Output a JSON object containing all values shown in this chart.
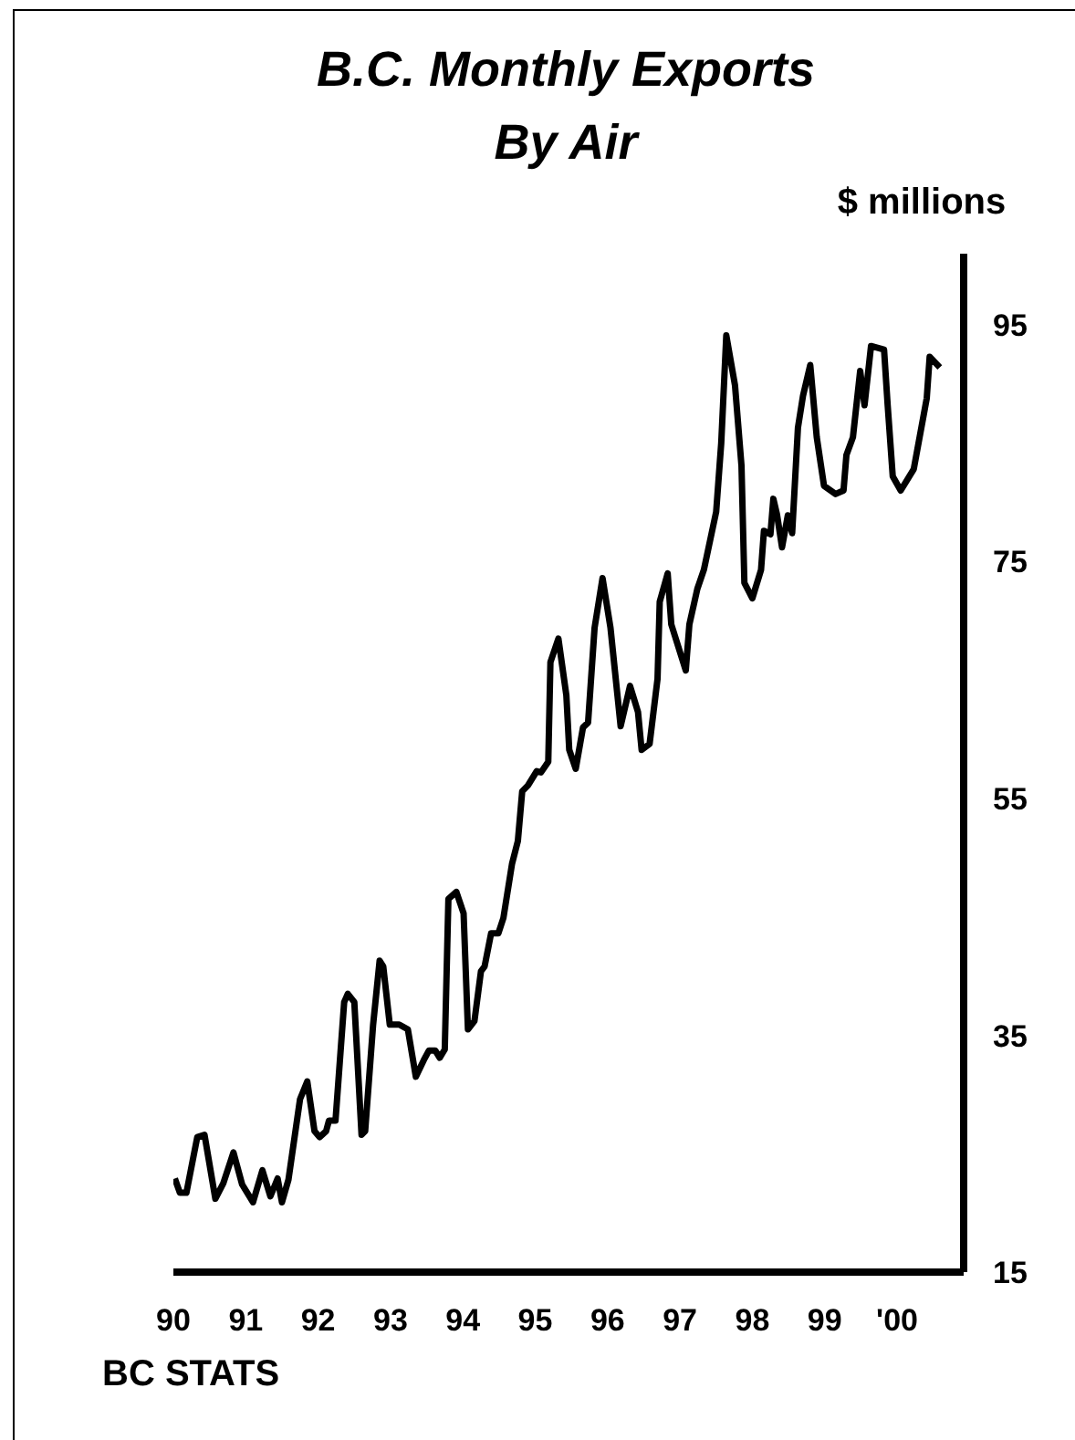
{
  "chart_data": {
    "type": "line",
    "title": "B.C. Monthly Exports\nBy Air",
    "ylabel": "$ millions",
    "annotations": [
      "BC STATS"
    ],
    "x": [
      1990.02,
      1990.09,
      1990.18,
      1990.33,
      1990.43,
      1990.58,
      1990.69,
      1990.83,
      1990.95,
      1991.1,
      1991.23,
      1991.34,
      1991.44,
      1991.5,
      1991.59,
      1991.75,
      1991.85,
      1991.95,
      1992.02,
      1992.11,
      1992.15,
      1992.24,
      1992.36,
      1992.41,
      1992.5,
      1992.6,
      1992.65,
      1992.76,
      1992.85,
      1992.9,
      1992.99,
      1993.12,
      1993.24,
      1993.35,
      1993.46,
      1993.53,
      1993.62,
      1993.68,
      1993.75,
      1993.8,
      1993.91,
      1994.01,
      1994.07,
      1994.16,
      1994.25,
      1994.3,
      1994.39,
      1994.49,
      1994.56,
      1994.68,
      1994.76,
      1994.82,
      1994.9,
      1995.02,
      1995.08,
      1995.18,
      1995.21,
      1995.32,
      1995.43,
      1995.47,
      1995.56,
      1995.66,
      1995.73,
      1995.82,
      1995.93,
      1996.04,
      1996.18,
      1996.31,
      1996.42,
      1996.47,
      1996.58,
      1996.69,
      1996.72,
      1996.83,
      1996.88,
      1997.08,
      1997.13,
      1997.24,
      1997.33,
      1997.5,
      1997.57,
      1997.64,
      1997.76,
      1997.85,
      1997.89,
      1998.0,
      1998.12,
      1998.16,
      1998.25,
      1998.29,
      1998.34,
      1998.41,
      1998.49,
      1998.55,
      1998.63,
      1998.7,
      1998.8,
      1998.89,
      1998.99,
      1999.15,
      1999.26,
      1999.3,
      1999.39,
      1999.49,
      1999.55,
      1999.64,
      1999.82,
      1999.87,
      1999.94,
      2000.05,
      2000.23,
      2000.41,
      2000.45,
      2000.59
    ],
    "series": [
      {
        "color": "#000000",
        "values": [
          22.9,
          21.7,
          21.7,
          26.4,
          26.6,
          21.2,
          22.5,
          25.1,
          22.4,
          20.9,
          23.6,
          21.4,
          22.9,
          20.9,
          22.8,
          29.6,
          31.1,
          26.9,
          26.4,
          26.9,
          27.8,
          27.8,
          37.8,
          38.5,
          37.8,
          26.6,
          26.9,
          35.9,
          41.3,
          40.8,
          35.9,
          35.9,
          35.5,
          31.5,
          32.9,
          33.7,
          33.7,
          33.1,
          33.8,
          46.5,
          47.1,
          45.3,
          35.5,
          36.2,
          40.4,
          40.8,
          43.6,
          43.6,
          44.9,
          49.5,
          51.4,
          55.6,
          56.1,
          57.3,
          57.2,
          58.1,
          66.5,
          68.5,
          63.7,
          59.1,
          57.5,
          61.0,
          61.4,
          69.4,
          73.6,
          69.4,
          61.1,
          64.5,
          62.3,
          59.1,
          59.6,
          65.1,
          71.6,
          74.0,
          69.7,
          65.8,
          69.7,
          72.7,
          74.3,
          79.2,
          85.0,
          94.1,
          89.9,
          83.1,
          73.2,
          71.9,
          74.3,
          77.6,
          77.3,
          80.3,
          79.0,
          76.2,
          78.9,
          77.4,
          86.3,
          89.0,
          91.6,
          85.5,
          81.4,
          80.7,
          81.0,
          84.0,
          85.5,
          91.1,
          88.2,
          93.2,
          92.9,
          88.2,
          82.2,
          81.0,
          82.8,
          88.8,
          92.3,
          91.4
        ]
      }
    ],
    "xlim": [
      1990,
      2000.92
    ],
    "xticks": [
      {
        "value": 1990,
        "label": "90"
      },
      {
        "value": 1991,
        "label": "91"
      },
      {
        "value": 1992,
        "label": "92"
      },
      {
        "value": 1993,
        "label": "93"
      },
      {
        "value": 1994,
        "label": "94"
      },
      {
        "value": 1995,
        "label": "95"
      },
      {
        "value": 1996,
        "label": "96"
      },
      {
        "value": 1997,
        "label": "97"
      },
      {
        "value": 1998,
        "label": "98"
      },
      {
        "value": 1999,
        "label": "99"
      },
      {
        "value": 2000,
        "label": "'00"
      }
    ],
    "ylim": [
      15,
      101
    ],
    "yticks": [
      15,
      35,
      55,
      75,
      95
    ],
    "grid": false,
    "legend": false,
    "marker": "none",
    "line_style": "solid"
  }
}
